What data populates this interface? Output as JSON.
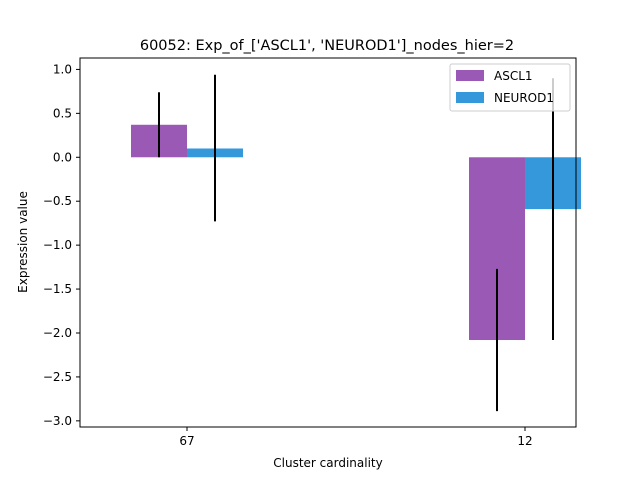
{
  "chart_data": {
    "type": "bar",
    "title": "60052: Exp_of_['ASCL1', 'NEUROD1']_nodes_hier=2",
    "xlabel": "Cluster cardinality",
    "ylabel": "Expression value",
    "categories": [
      "67",
      "12"
    ],
    "ylim": [
      -3.07,
      1.13
    ],
    "yticks": [
      1.0,
      0.5,
      0.0,
      -0.5,
      -1.0,
      -1.5,
      -2.0,
      -2.5,
      -3.0
    ],
    "ytick_labels": [
      "1.0",
      "0.5",
      "0.0",
      "−0.5",
      "−1.0",
      "−1.5",
      "−2.0",
      "−2.5",
      "−3.0"
    ],
    "legend_position": "top-right",
    "grid": false,
    "series": [
      {
        "name": "ASCL1",
        "color": "#9b59b6",
        "values": [
          0.37,
          -2.08
        ],
        "err_low": [
          0.0,
          -2.89
        ],
        "err_high": [
          0.74,
          -1.27
        ]
      },
      {
        "name": "NEUROD1",
        "color": "#3498db",
        "values": [
          0.1,
          -0.59
        ],
        "err_low": [
          -0.73,
          -2.08
        ],
        "err_high": [
          0.94,
          0.9
        ]
      }
    ]
  }
}
